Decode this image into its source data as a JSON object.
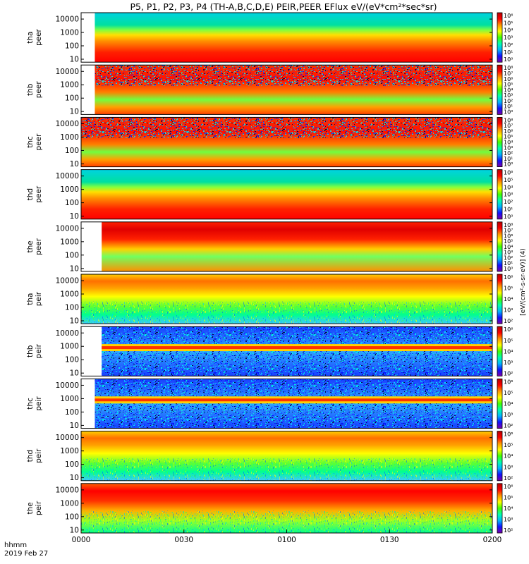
{
  "title": "P5, P1, P2, P3, P4 (TH-A,B,C,D,E) PEIR,PEER EFlux eV/(eV*cm²*sec*sr)",
  "footer": {
    "line1": "hhmm",
    "line2": "2019 Feb 27"
  },
  "colorbar_unit_label": "[eV/(cm²-s-sr-eV)] (4)",
  "chart_data": {
    "type": "heatmap",
    "x_tick_labels": [
      "0000",
      "0030",
      "0100",
      "0130",
      "0200"
    ],
    "x_range_minutes": [
      0,
      120
    ],
    "y_scale": "log",
    "y_range": [
      6,
      30000
    ],
    "y_tick_values": [
      10,
      100,
      1000,
      10000
    ],
    "y_tick_labels": [
      "10",
      "100",
      "1000",
      "10000"
    ],
    "colormap": [
      "#7a00a8",
      "#1010ff",
      "#00b4ff",
      "#00ffb0",
      "#40ff00",
      "#ffff00",
      "#ff9600",
      "#ff0000",
      "#b40000"
    ],
    "panels": [
      {
        "label1": "tha",
        "label2": "peer",
        "species": "electron",
        "cbar_range": [
          1,
          1000000
        ],
        "cbar_ticks": [
          "10⁶",
          "10⁵",
          "10⁴",
          "10³",
          "10²",
          "10¹",
          "10⁰"
        ],
        "data_start_minute": 4
      },
      {
        "label1": "thb",
        "label2": "peer",
        "species": "electron",
        "cbar_range": [
          1,
          100000000
        ],
        "cbar_ticks": [
          "10⁸",
          "10⁷",
          "10⁶",
          "10⁵",
          "10⁴",
          "10³",
          "10²",
          "10¹",
          "10⁰"
        ],
        "data_start_minute": 4
      },
      {
        "label1": "thc",
        "label2": "peer",
        "species": "electron",
        "cbar_range": [
          1,
          100000000
        ],
        "cbar_ticks": [
          "10⁸",
          "10⁷",
          "10⁶",
          "10⁵",
          "10⁴",
          "10³",
          "10²",
          "10¹",
          "10⁰"
        ],
        "data_start_minute": 0
      },
      {
        "label1": "thd",
        "label2": "peer",
        "species": "electron",
        "cbar_range": [
          1,
          1000000
        ],
        "cbar_ticks": [
          "10⁶",
          "10⁵",
          "10⁴",
          "10³",
          "10²",
          "10¹",
          "10⁰"
        ],
        "data_start_minute": 0
      },
      {
        "label1": "the",
        "label2": "peer",
        "species": "electron",
        "cbar_range": [
          1,
          100000000
        ],
        "cbar_ticks": [
          "10⁸",
          "10⁷",
          "10⁶",
          "10⁵",
          "10⁴",
          "10³",
          "10²",
          "10¹",
          "10⁰"
        ],
        "data_start_minute": 6
      },
      {
        "label1": "tha",
        "label2": "peir",
        "species": "ion",
        "cbar_range": [
          100,
          1000000
        ],
        "cbar_ticks": [
          "10⁶",
          "10⁵",
          "10⁴",
          "10³",
          "10²"
        ],
        "data_start_minute": 0
      },
      {
        "label1": "thb",
        "label2": "peir",
        "species": "ion",
        "cbar_range": [
          100,
          1000000
        ],
        "cbar_ticks": [
          "10⁶",
          "10⁵",
          "10⁴",
          "10³",
          "10²"
        ],
        "data_start_minute": 6
      },
      {
        "label1": "thc",
        "label2": "peir",
        "species": "ion",
        "cbar_range": [
          100,
          1000000
        ],
        "cbar_ticks": [
          "10⁶",
          "10⁵",
          "10⁴",
          "10³",
          "10²"
        ],
        "data_start_minute": 4
      },
      {
        "label1": "thd",
        "label2": "peir",
        "species": "ion",
        "cbar_range": [
          100,
          1000000
        ],
        "cbar_ticks": [
          "10⁶",
          "10⁵",
          "10⁴",
          "10³",
          "10²"
        ],
        "data_start_minute": 0
      },
      {
        "label1": "the",
        "label2": "peir",
        "species": "ion",
        "cbar_range": [
          100,
          1000000
        ],
        "cbar_ticks": [
          "10⁶",
          "10⁵",
          "10⁴",
          "10³",
          "10²"
        ],
        "data_start_minute": 0
      }
    ]
  }
}
